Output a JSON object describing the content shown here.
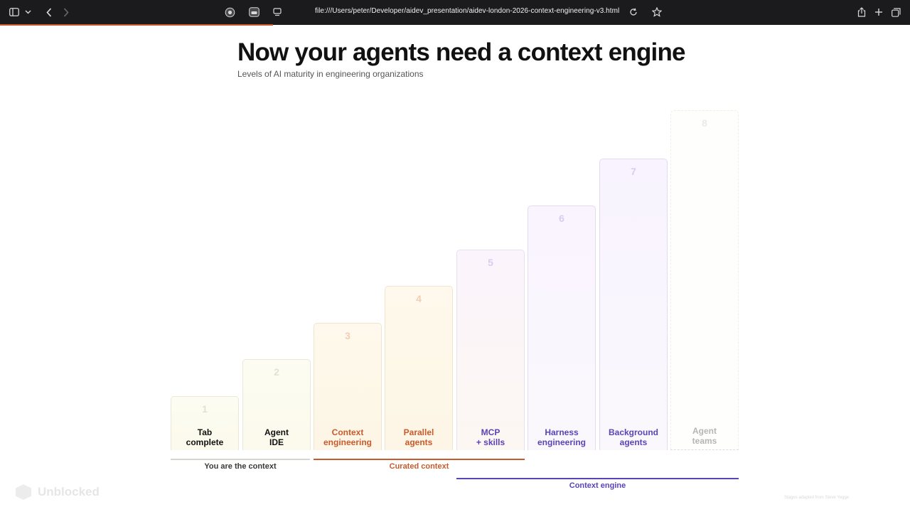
{
  "browser": {
    "url": "file:///Users/peter/Developer/aidev_presentation/aidev-london-2026-context-engineering-v3.html",
    "icons": [
      "sidebar-icon",
      "chevron-down-icon",
      "back-icon",
      "forward-icon",
      "extension-icon",
      "tab-icon",
      "page-settings-icon",
      "reload-icon",
      "bookmark-star-icon",
      "share-icon",
      "new-tab-icon",
      "tab-overview-icon"
    ]
  },
  "slide": {
    "title": "Now your agents need a context engine",
    "subtitle": "Levels of AI maturity in engineering organizations",
    "stages": [
      {
        "num": "1",
        "label": "Tab\ncomplete"
      },
      {
        "num": "2",
        "label": "Agent\nIDE"
      },
      {
        "num": "3",
        "label": "Context\nengineering"
      },
      {
        "num": "4",
        "label": "Parallel\nagents"
      },
      {
        "num": "5",
        "label": "MCP\n+ skills"
      },
      {
        "num": "6",
        "label": "Harness\nengineering"
      },
      {
        "num": "7",
        "label": "Background\nagents"
      },
      {
        "num": "8",
        "label": "Agent\nteams"
      }
    ],
    "groups": {
      "you": "You are the context",
      "curated": "Curated context",
      "engine": "Context engine"
    },
    "logo": "Unblocked",
    "footnote": "Stages adapted from Steve Yegge"
  },
  "colors": {
    "accent_orange": "#c95a2b",
    "accent_purple": "#5944b8",
    "toolbar": "#1b1b1d"
  }
}
